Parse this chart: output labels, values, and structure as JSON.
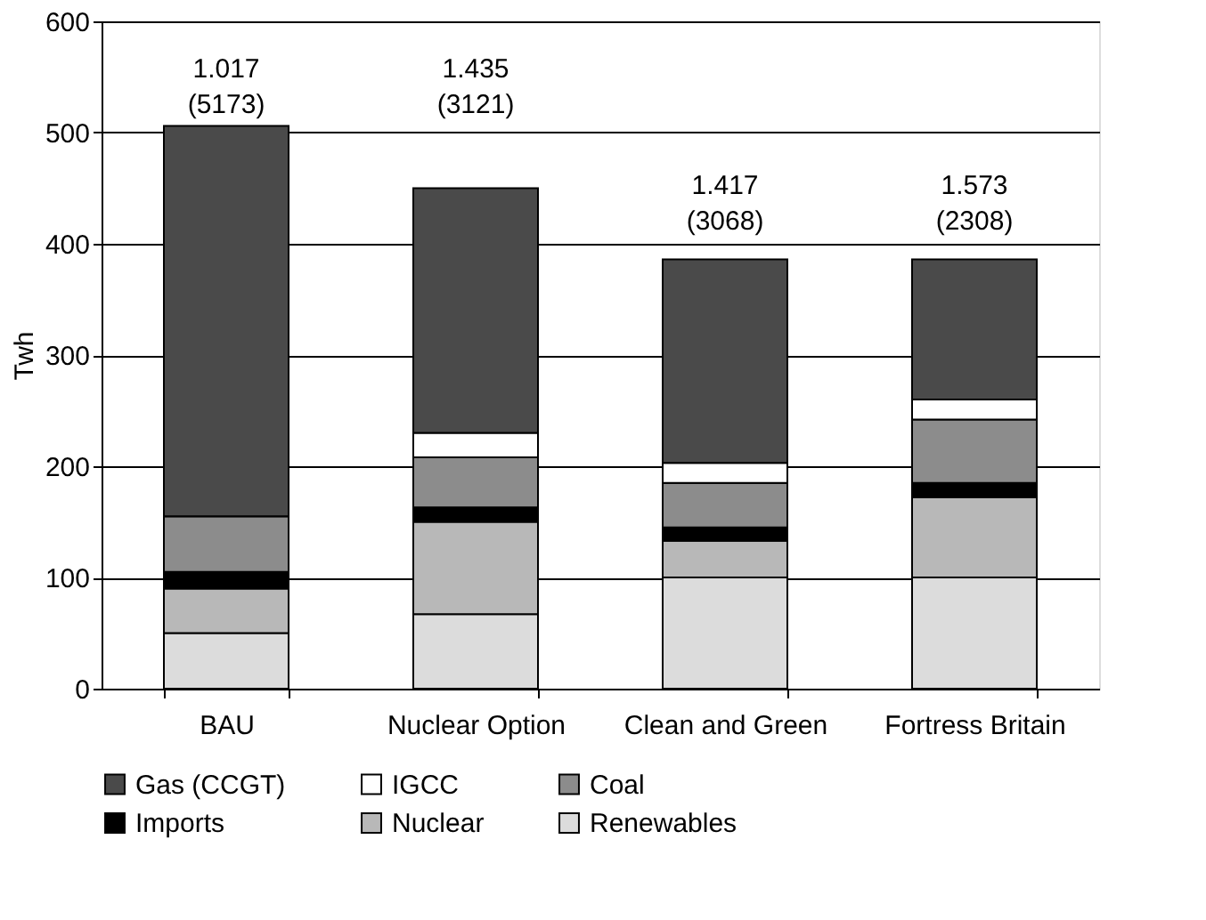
{
  "chart_data": {
    "type": "bar",
    "stacked": true,
    "ylabel": "Twh",
    "categories": [
      "BAU",
      "Nuclear Option",
      "Clean and Green",
      "Fortress Britain"
    ],
    "series": [
      {
        "name": "Renewables",
        "color": "#dcdcdc",
        "values": [
          50,
          67,
          100,
          100
        ]
      },
      {
        "name": "Nuclear",
        "color": "#b8b8b8",
        "values": [
          40,
          83,
          33,
          72
        ]
      },
      {
        "name": "Imports",
        "color": "#000000",
        "values": [
          15,
          13,
          12,
          13
        ]
      },
      {
        "name": "Coal",
        "color": "#8c8c8c",
        "values": [
          50,
          45,
          40,
          57
        ]
      },
      {
        "name": "IGCC",
        "color": "#ffffff",
        "values": [
          0,
          22,
          18,
          18
        ]
      },
      {
        "name": "Gas (CCGT)",
        "color": "#4a4a4a",
        "values": [
          351,
          220,
          183,
          126
        ]
      }
    ],
    "ylim": [
      0,
      600
    ],
    "yticks": [
      0,
      100,
      200,
      300,
      400,
      500,
      600
    ],
    "grid": "y",
    "legend": "bottom",
    "annotations": [
      "1.017\n(5173)",
      "1.435\n(3121)",
      "1.417\n(3068)",
      "1.573\n(2308)"
    ]
  }
}
